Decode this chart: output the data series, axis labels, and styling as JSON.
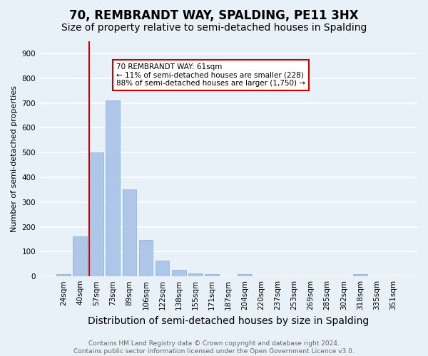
{
  "title": "70, REMBRANDT WAY, SPALDING, PE11 3HX",
  "subtitle": "Size of property relative to semi-detached houses in Spalding",
  "xlabel": "Distribution of semi-detached houses by size in Spalding",
  "ylabel": "Number of semi-detached properties",
  "categories": [
    "24sqm",
    "40sqm",
    "57sqm",
    "73sqm",
    "89sqm",
    "106sqm",
    "122sqm",
    "138sqm",
    "155sqm",
    "171sqm",
    "187sqm",
    "204sqm",
    "220sqm",
    "237sqm",
    "253sqm",
    "269sqm",
    "285sqm",
    "302sqm",
    "318sqm",
    "335sqm",
    "351sqm"
  ],
  "values": [
    8,
    160,
    500,
    710,
    350,
    148,
    65,
    25,
    12,
    10,
    0,
    8,
    0,
    0,
    0,
    0,
    0,
    0,
    8,
    0,
    0
  ],
  "bar_color": "#aec6e8",
  "bar_edge_color": "#8ab0d0",
  "vline_color": "#cc0000",
  "annotation_text": "70 REMBRANDT WAY: 61sqm\n← 11% of semi-detached houses are smaller (228)\n88% of semi-detached houses are larger (1,750) →",
  "annotation_box_color": "#ffffff",
  "annotation_box_edge": "#cc0000",
  "ylim": [
    0,
    950
  ],
  "yticks": [
    0,
    100,
    200,
    300,
    400,
    500,
    600,
    700,
    800,
    900
  ],
  "background_color": "#e8f0f8",
  "grid_color": "#ffffff",
  "footer": "Contains HM Land Registry data © Crown copyright and database right 2024.\nContains public sector information licensed under the Open Government Licence v3.0.",
  "title_fontsize": 12,
  "subtitle_fontsize": 10,
  "xlabel_fontsize": 10,
  "ylabel_fontsize": 8,
  "tick_fontsize": 7.5,
  "annotation_fontsize": 7.5,
  "footer_fontsize": 6.5
}
